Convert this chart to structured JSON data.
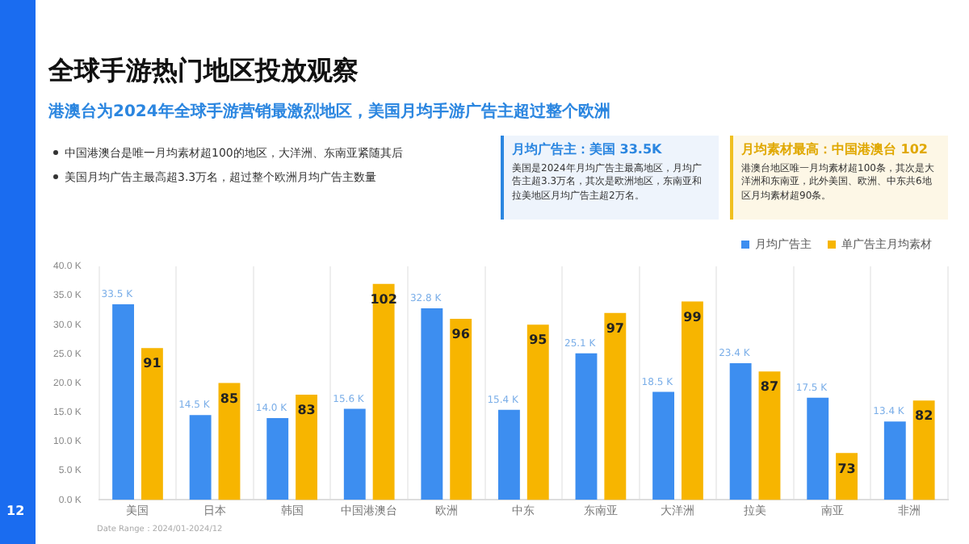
{
  "chart_data": {
    "type": "bar",
    "title": "全球手游热门地区投放观察",
    "subtitle": "港澳台为2024年全球手游营销最激烈地区，美国月均手游广告主超过整个欧洲",
    "annotations": [
      "中国港澳台是唯一月均素材超100的地区，大洋洲、东南亚紧随其后",
      "美国月均广告主最高超3.3万名，超过整个欧洲月均广告主数量",
      "月均广告主：美国 33.5K",
      "美国是2024年月均广告主最高地区，月均广告主超3.3万名，其次是欧洲地区，东南亚和拉美地区月均广告主超2万名。",
      "月均素材最高：中国港澳台 102",
      "港澳台地区唯一月均素材超100条，其次是大洋洲和东南亚，此外美国、欧洲、中东共6地区月均素材超90条。",
      "Date Range：2024/01-2024/12",
      "12"
    ],
    "categories": [
      "美国",
      "日本",
      "韩国",
      "中国港澳台",
      "欧洲",
      "中东",
      "东南亚",
      "大洋洲",
      "拉美",
      "南亚",
      "非洲"
    ],
    "series": [
      {
        "name": "月均广告主",
        "color": "#3d8ef0",
        "values": [
          33.5,
          14.5,
          14.0,
          15.6,
          32.8,
          15.4,
          25.1,
          18.5,
          23.4,
          17.5,
          13.4
        ],
        "value_labels": [
          "33.5 K",
          "14.5 K",
          "14.0 K",
          "15.6 K",
          "32.8 K",
          "15.4 K",
          "25.1 K",
          "18.5 K",
          "23.4 K",
          "17.5 K",
          "13.4 K"
        ]
      },
      {
        "name": "单广告主月均素材",
        "color": "#f7b500",
        "axis": "y2",
        "values": [
          91,
          85,
          83,
          102,
          96,
          95,
          97,
          99,
          87,
          73,
          82
        ],
        "value_labels": [
          "91",
          "85",
          "83",
          "102",
          "96",
          "95",
          "97",
          "99",
          "87",
          "73",
          "82"
        ]
      }
    ],
    "ylim": [
      0,
      40
    ],
    "yticks": [
      {
        "value": 0,
        "label": "0.0 K"
      },
      {
        "value": 5,
        "label": "5.0 K"
      },
      {
        "value": 10,
        "label": "10.0 K"
      },
      {
        "value": 15,
        "label": "15.0 K"
      },
      {
        "value": 20,
        "label": "20.0 K"
      },
      {
        "value": 25,
        "label": "25.0 K"
      },
      {
        "value": 30,
        "label": "30.0 K"
      },
      {
        "value": 35,
        "label": "35.0 K"
      },
      {
        "value": 40,
        "label": "40.0 K"
      }
    ],
    "y2lim": [
      65,
      105
    ],
    "grid": "x",
    "legend": "top right"
  }
}
